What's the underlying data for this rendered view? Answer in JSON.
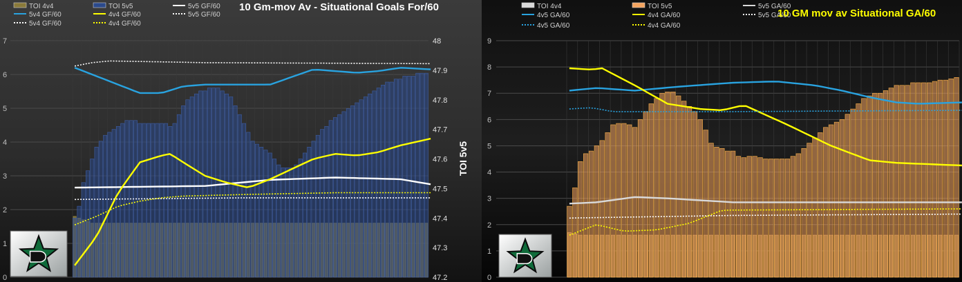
{
  "chart_data": [
    {
      "type": "bar",
      "title": "10 Gm-mov Av - Situational Goals For/60",
      "y_right_label": "TOI 5v5",
      "y_left_ticks": [
        "7",
        "6",
        "5",
        "4",
        "3",
        "2",
        "1",
        "0"
      ],
      "y_right_ticks": [
        "48",
        "47.9",
        "47.8",
        "47.7",
        "47.6",
        "47.5",
        "47.4",
        "47.3",
        "47.2"
      ],
      "ylim_left": [
        0,
        7
      ],
      "ylim_right": [
        47.2,
        48
      ],
      "legend": [
        {
          "label": "TOI 4v4",
          "style": "bar",
          "color": "#8a7a3a"
        },
        {
          "label": "TOI 5v5",
          "style": "bar",
          "color": "#2b4a8c"
        },
        {
          "label": "5v5 GF/60",
          "style": "line",
          "color": "#ffffff"
        },
        {
          "label": "5v4 GF/60",
          "style": "line",
          "color": "#29a3e0"
        },
        {
          "label": "4v4 GF/60",
          "style": "line",
          "color": "#ffff00"
        },
        {
          "label": "5v5 GF/60",
          "style": "dotted",
          "color": "#ffffff"
        },
        {
          "label": "5v4 GF/60",
          "style": "dotted",
          "color": "#ffffff"
        },
        {
          "label": "4v4 GF/60",
          "style": "dotted",
          "color": "#ffff00"
        }
      ],
      "series": [
        {
          "name": "TOI 4v4",
          "axis": "left",
          "kind": "bar",
          "color": "#8a7a3a",
          "values": [
            1.8,
            1.75,
            1.7,
            1.65,
            1.6,
            1.6,
            1.6,
            1.6,
            1.6,
            1.6,
            1.6,
            1.6,
            1.6,
            1.6,
            1.6,
            1.6,
            1.6,
            1.6,
            1.6,
            1.6,
            1.6,
            1.6,
            1.6,
            1.6,
            1.6,
            1.6,
            1.6,
            1.6,
            1.6,
            1.6,
            1.6,
            1.6,
            1.6,
            1.6,
            1.6,
            1.6,
            1.6,
            1.6,
            1.6,
            1.6,
            1.6,
            1.6,
            1.6,
            1.6,
            1.6,
            1.6,
            1.6,
            1.6,
            1.6,
            1.6,
            1.6,
            1.6,
            1.6,
            1.6,
            1.6,
            1.6,
            1.6,
            1.6,
            1.6,
            1.6,
            1.6,
            1.6,
            1.6,
            1.6,
            1.6,
            1.6,
            1.6,
            1.6,
            1.6,
            1.6,
            1.6,
            1.6,
            1.6,
            1.6,
            1.6,
            1.6,
            1.6,
            1.6,
            1.6,
            1.6,
            1.6,
            1.6
          ]
        },
        {
          "name": "TOI 5v5",
          "axis": "right",
          "kind": "bar",
          "color": "#2b4a8c",
          "values": [
            47.4,
            47.44,
            47.52,
            47.56,
            47.6,
            47.64,
            47.66,
            47.68,
            47.69,
            47.7,
            47.71,
            47.72,
            47.73,
            47.73,
            47.73,
            47.72,
            47.72,
            47.72,
            47.72,
            47.72,
            47.72,
            47.72,
            47.71,
            47.72,
            47.75,
            47.78,
            47.8,
            47.81,
            47.82,
            47.83,
            47.83,
            47.84,
            47.84,
            47.84,
            47.83,
            47.82,
            47.81,
            47.78,
            47.75,
            47.72,
            47.69,
            47.66,
            47.65,
            47.64,
            47.63,
            47.62,
            47.6,
            47.58,
            47.57,
            47.57,
            47.57,
            47.58,
            47.6,
            47.62,
            47.64,
            47.66,
            47.68,
            47.7,
            47.71,
            47.73,
            47.74,
            47.75,
            47.76,
            47.77,
            47.78,
            47.79,
            47.8,
            47.81,
            47.82,
            47.83,
            47.84,
            47.85,
            47.86,
            47.86,
            47.87,
            47.87,
            47.88,
            47.88,
            47.88,
            47.89,
            47.89,
            47.89
          ]
        },
        {
          "name": "5v5 GF/60",
          "axis": "left",
          "kind": "line",
          "color": "#ffffff",
          "x": [
            0,
            30,
            45,
            60,
            75,
            82
          ],
          "values": [
            2.65,
            2.7,
            2.88,
            2.95,
            2.9,
            2.75
          ]
        },
        {
          "name": "5v4 GF/60",
          "axis": "left",
          "kind": "line",
          "color": "#29a3e0",
          "x": [
            0,
            8,
            15,
            20,
            25,
            30,
            45,
            55,
            65,
            70,
            75,
            82
          ],
          "values": [
            6.2,
            5.8,
            5.45,
            5.45,
            5.65,
            5.7,
            5.7,
            6.15,
            6.05,
            6.1,
            6.2,
            6.15
          ]
        },
        {
          "name": "4v4 GF/60",
          "axis": "left",
          "kind": "line",
          "color": "#ffff00",
          "x": [
            0,
            5,
            10,
            15,
            20,
            22,
            25,
            30,
            35,
            40,
            45,
            50,
            55,
            60,
            65,
            70,
            75,
            82
          ],
          "values": [
            0.35,
            1.2,
            2.5,
            3.4,
            3.6,
            3.65,
            3.4,
            3.0,
            2.8,
            2.65,
            2.9,
            3.2,
            3.5,
            3.65,
            3.6,
            3.7,
            3.9,
            4.1
          ]
        },
        {
          "name": "5v5 GF/60",
          "axis": "left",
          "kind": "dotted",
          "color": "#ffffff",
          "x": [
            0,
            40,
            82
          ],
          "values": [
            2.3,
            2.35,
            2.35
          ]
        },
        {
          "name": "5v4 GF/60",
          "axis": "left",
          "kind": "dotted",
          "color": "#ffffff",
          "x": [
            0,
            4,
            8,
            30,
            82
          ],
          "values": [
            6.25,
            6.35,
            6.4,
            6.35,
            6.32
          ]
        },
        {
          "name": "4v4 GF/60",
          "axis": "left",
          "kind": "dotted",
          "color": "#ffff00",
          "x": [
            0,
            5,
            10,
            15,
            20,
            25,
            40,
            60,
            82
          ],
          "values": [
            1.55,
            1.8,
            2.1,
            2.25,
            2.35,
            2.4,
            2.45,
            2.5,
            2.5
          ]
        }
      ]
    },
    {
      "type": "bar",
      "title": "10 GM mov av Situational GA/60",
      "y_left_ticks": [
        "9",
        "8",
        "7",
        "6",
        "5",
        "4",
        "3",
        "2",
        "1",
        "0"
      ],
      "ylim_left": [
        0,
        9
      ],
      "legend": [
        {
          "label": "TOI 4v4",
          "style": "bar",
          "color": "#d9d9d9"
        },
        {
          "label": "TOI 5v5",
          "style": "bar",
          "color": "#f4a460"
        },
        {
          "label": "5v5 GA/60",
          "style": "line",
          "color": "#d9d9d9"
        },
        {
          "label": "4v5 GA/60",
          "style": "line",
          "color": "#29a3e0"
        },
        {
          "label": "4v4 GA/60",
          "style": "line",
          "color": "#ffff00"
        },
        {
          "label": "5v5 GA/60",
          "style": "dotted",
          "color": "#ffffff"
        },
        {
          "label": "4v5 GA/60",
          "style": "dotted",
          "color": "#29a3e0"
        },
        {
          "label": "4v4 GA/60",
          "style": "dotted",
          "color": "#ffff00"
        }
      ],
      "series": [
        {
          "name": "TOI 4v4",
          "axis": "left",
          "kind": "bar",
          "color": "#8a6a30",
          "values": [
            1.7,
            1.65,
            1.6,
            1.6,
            1.6,
            1.6,
            1.6,
            1.6,
            1.6,
            1.6,
            1.6,
            1.6,
            1.6,
            1.6,
            1.6,
            1.6,
            1.6,
            1.6,
            1.6,
            1.6,
            1.6,
            1.6,
            1.6,
            1.6,
            1.6,
            1.6,
            1.6,
            1.6,
            1.6,
            1.6,
            1.6,
            1.6,
            1.6,
            1.6,
            1.6,
            1.6,
            1.6,
            1.6,
            1.6,
            1.6,
            1.6,
            1.6,
            1.6,
            1.6,
            1.6,
            1.6,
            1.6,
            1.6,
            1.6,
            1.6,
            1.6,
            1.6,
            1.6,
            1.6,
            1.6,
            1.6,
            1.6,
            1.6,
            1.6,
            1.6,
            1.6,
            1.6,
            1.6,
            1.6,
            1.6,
            1.6,
            1.6,
            1.6,
            1.6,
            1.6,
            1.6,
            1.6
          ]
        },
        {
          "name": "TOI 5v5",
          "axis": "left",
          "kind": "bar",
          "color": "#f4a460",
          "values": [
            2.7,
            3.4,
            4.4,
            4.7,
            4.8,
            5.0,
            5.2,
            5.5,
            5.8,
            5.85,
            5.85,
            5.8,
            5.7,
            6.0,
            6.3,
            6.6,
            6.8,
            7.0,
            7.05,
            7.05,
            6.9,
            6.7,
            6.5,
            6.3,
            6.0,
            5.6,
            5.1,
            4.95,
            4.9,
            4.8,
            4.8,
            4.6,
            4.55,
            4.6,
            4.6,
            4.55,
            4.5,
            4.5,
            4.5,
            4.5,
            4.5,
            4.6,
            4.7,
            4.9,
            5.1,
            5.3,
            5.5,
            5.7,
            5.8,
            5.9,
            6.0,
            6.2,
            6.4,
            6.6,
            6.8,
            6.9,
            7.0,
            7.0,
            7.1,
            7.2,
            7.3,
            7.3,
            7.3,
            7.4,
            7.4,
            7.4,
            7.4,
            7.45,
            7.5,
            7.5,
            7.55,
            7.6
          ]
        },
        {
          "name": "5v5 GA/60",
          "axis": "left",
          "kind": "line",
          "color": "#d9d9d9",
          "x": [
            0,
            5,
            12,
            18,
            22,
            30,
            72
          ],
          "values": [
            2.8,
            2.85,
            3.05,
            3.0,
            2.95,
            2.85,
            2.85
          ]
        },
        {
          "name": "4v5 GA/60",
          "axis": "left",
          "kind": "line",
          "color": "#29a3e0",
          "x": [
            0,
            5,
            12,
            20,
            30,
            38,
            45,
            50,
            55,
            60,
            64,
            72
          ],
          "values": [
            7.1,
            7.2,
            7.1,
            7.25,
            7.4,
            7.45,
            7.3,
            7.1,
            6.85,
            6.65,
            6.6,
            6.65
          ]
        },
        {
          "name": "4v4 GA/60",
          "axis": "left",
          "kind": "line",
          "color": "#ffff00",
          "x": [
            0,
            4,
            6,
            12,
            18,
            24,
            28,
            32,
            40,
            48,
            55,
            60,
            66,
            72
          ],
          "values": [
            7.95,
            7.9,
            7.95,
            7.3,
            6.6,
            6.4,
            6.35,
            6.55,
            5.8,
            5.0,
            4.45,
            4.35,
            4.3,
            4.25
          ]
        },
        {
          "name": "5v5 GA/60",
          "axis": "left",
          "kind": "dotted",
          "color": "#ffffff",
          "x": [
            0,
            30,
            72
          ],
          "values": [
            2.25,
            2.35,
            2.4
          ]
        },
        {
          "name": "4v5 GA/60",
          "axis": "left",
          "kind": "dotted",
          "color": "#29a3e0",
          "x": [
            0,
            4,
            8,
            30,
            72
          ],
          "values": [
            6.4,
            6.45,
            6.3,
            6.3,
            6.35
          ]
        },
        {
          "name": "4v4 GA/60",
          "axis": "left",
          "kind": "dotted",
          "color": "#ffff00",
          "x": [
            0,
            5,
            10,
            16,
            22,
            28,
            72
          ],
          "values": [
            1.6,
            2.0,
            1.75,
            1.8,
            2.05,
            2.55,
            2.6
          ]
        }
      ]
    }
  ]
}
